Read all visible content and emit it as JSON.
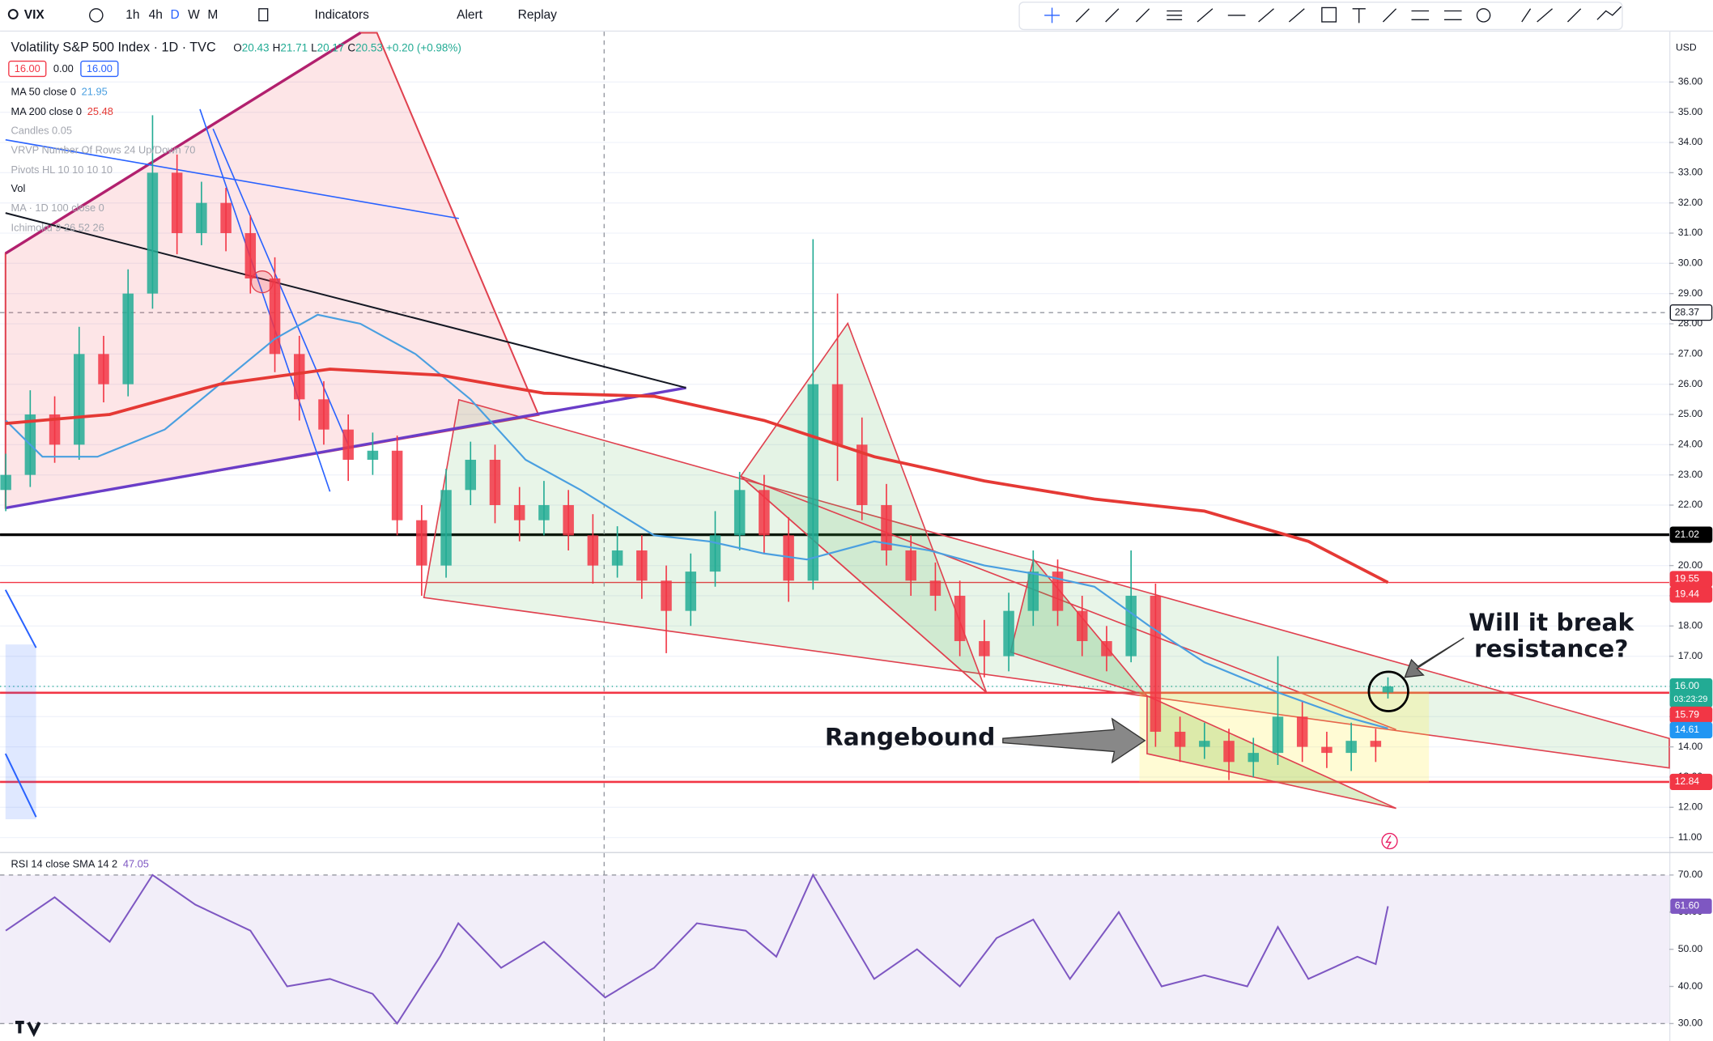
{
  "toolbar": {
    "symbol": "VIX",
    "intervals": [
      "1h",
      "4h",
      "D",
      "W",
      "M"
    ],
    "indicators": "Indicators",
    "alert": "Alert",
    "replay": "Replay",
    "currency": "USD"
  },
  "quote": [
    "16.00",
    "0.00",
    "16.00"
  ],
  "indicators": [
    "Candles 0.05",
    "VRVP Number Of Rows 24 Up/Down 70",
    "Pivots HL 10 10 10 10",
    "Vol",
    "MA · 1D 100 close 0",
    "Ichimoku 9 26 52 26"
  ],
  "annotations": [
    "Will it break",
    "resistance?",
    "Rangebound"
  ],
  "chart_data": [
    {
      "type": "candlestick",
      "title": "Volatility S&P 500 Index · 1D · TVC",
      "ohlc": [
        {
          "label": "O",
          "value": "20.43"
        },
        {
          "label": "H",
          "value": "21.71"
        },
        {
          "label": "L",
          "value": "20.17"
        },
        {
          "label": "C",
          "value": "20.53"
        }
      ],
      "change": "+0.20 (+0.98%)",
      "up_color": "#22ab94",
      "down_color": "#f23645",
      "x": [
        0,
        4,
        8,
        12,
        16,
        20,
        24,
        28,
        32,
        36,
        40,
        44,
        48,
        52,
        56,
        60,
        64,
        68,
        72,
        76,
        80,
        84,
        88,
        92,
        96,
        100,
        104,
        108,
        112,
        116,
        120,
        124,
        128,
        132,
        136,
        140,
        144,
        148,
        152,
        156,
        160,
        164,
        168,
        172,
        176,
        180,
        184,
        188,
        192,
        196,
        200,
        204,
        208,
        212,
        216,
        220,
        224,
        226
      ],
      "open": [
        22.5,
        23,
        25,
        24,
        27,
        26,
        29,
        33,
        31,
        32,
        31,
        29.5,
        27,
        25.5,
        24.5,
        23.5,
        23.8,
        21.5,
        20,
        22.5,
        23.5,
        22,
        21.5,
        22,
        21,
        20,
        20.5,
        19.5,
        18.5,
        19.8,
        21,
        22.5,
        21,
        19.5,
        26,
        24,
        22,
        20.5,
        19.5,
        19,
        17.5,
        17,
        18.5,
        19.8,
        18.5,
        17.5,
        17,
        19,
        14.5,
        14,
        14.2,
        13.5,
        13.8,
        15,
        14,
        13.8,
        14.2,
        15.8
      ],
      "high": [
        23.7,
        25.8,
        25.6,
        27.9,
        27.6,
        29.8,
        34.9,
        33.6,
        32.7,
        32.5,
        31.6,
        30.2,
        27.6,
        26.1,
        25,
        24.4,
        24.3,
        22,
        23.2,
        24.1,
        24,
        22.6,
        22.8,
        22.5,
        21.7,
        21.3,
        21,
        20,
        20.4,
        21.8,
        23.1,
        23,
        21.6,
        30.8,
        29,
        24.9,
        22.7,
        21,
        20.1,
        19.5,
        18.2,
        19.1,
        20.5,
        20.2,
        19,
        18,
        20.5,
        19.4,
        15,
        14.8,
        14.6,
        14.3,
        17,
        15.5,
        14.5,
        14.8,
        14.6,
        16.3
      ],
      "low": [
        21.8,
        22.6,
        23.4,
        23.5,
        25.4,
        25.6,
        28.5,
        30.3,
        30.6,
        30.4,
        29,
        26.4,
        24.8,
        24,
        22.8,
        23,
        21,
        19,
        19.6,
        22,
        21.4,
        20.8,
        21,
        20.5,
        19.4,
        19.6,
        18.9,
        17.1,
        18,
        19.3,
        20.5,
        20.4,
        18.8,
        19.2,
        22.8,
        21.5,
        20,
        19,
        18.5,
        17,
        16.3,
        16.5,
        18,
        18,
        17,
        16.5,
        16.8,
        14,
        13.5,
        13.6,
        12.9,
        13,
        13.4,
        13.5,
        13.3,
        13.2,
        13.5,
        15.6
      ],
      "close": [
        23,
        25,
        24,
        27,
        26,
        29,
        33,
        31,
        32,
        31,
        29.5,
        27,
        25.5,
        24.5,
        23.5,
        23.8,
        21.5,
        20,
        22.5,
        23.5,
        22,
        21.5,
        22,
        21,
        20,
        20.5,
        19.5,
        18.5,
        19.8,
        21,
        22.5,
        21,
        19.5,
        26,
        24,
        22,
        20.5,
        19.5,
        19,
        17.5,
        17,
        18.5,
        19.8,
        18.5,
        17.5,
        17,
        19,
        14.5,
        14,
        14.2,
        13.5,
        13.8,
        15,
        14,
        13.8,
        14.2,
        14,
        16
      ],
      "series": [
        {
          "name": "MA 50 close 0",
          "legend_value": 21.95,
          "color": "#4a9fe0",
          "width": 1.6,
          "x": [
            0,
            6,
            15,
            26,
            35,
            44,
            51,
            58,
            67,
            76,
            85,
            94,
            106,
            115,
            124,
            131,
            142,
            151,
            160,
            169,
            178,
            187,
            196,
            208,
            219,
            226
          ],
          "values": [
            24.8,
            23.6,
            23.6,
            24.5,
            26,
            27.5,
            28.3,
            28,
            27,
            25.5,
            23.5,
            22.5,
            21,
            20.8,
            20.4,
            20.2,
            20.8,
            20.5,
            20,
            19.7,
            19.3,
            18,
            16.8,
            15.8,
            15,
            14.61
          ]
        },
        {
          "name": "MA 200 close 0",
          "legend_value": 25.48,
          "color": "#e53935",
          "width": 2.8,
          "x": [
            0,
            17,
            35,
            53,
            71,
            88,
            106,
            124,
            142,
            160,
            178,
            196,
            213,
            226
          ],
          "values": [
            24.7,
            25,
            26,
            26.5,
            26.3,
            25.7,
            25.6,
            24.8,
            23.6,
            22.8,
            22.2,
            21.8,
            20.8,
            19.44
          ]
        }
      ],
      "xlim": [
        -0.4,
        272
      ],
      "ylim": [
        10.52,
        37.63
      ],
      "yticks": [
        {
          "value": 11,
          "label": "11.00"
        },
        {
          "value": 12,
          "label": "12.00"
        },
        {
          "value": 13,
          "label": "13.00"
        },
        {
          "value": 14,
          "label": "14.00"
        },
        {
          "value": 15,
          "label": "15.00"
        },
        {
          "value": 16,
          "label": "16.00"
        },
        {
          "value": 17,
          "label": "17.00"
        },
        {
          "value": 18,
          "label": "18.00"
        },
        {
          "value": 19,
          "label": "19.00"
        },
        {
          "value": 20,
          "label": "20.00"
        },
        {
          "value": 21,
          "label": "21.00"
        },
        {
          "value": 22,
          "label": "22.00"
        },
        {
          "value": 23,
          "label": "23.00"
        },
        {
          "value": 24,
          "label": "24.00"
        },
        {
          "value": 25,
          "label": "25.00"
        },
        {
          "value": 26,
          "label": "26.00"
        },
        {
          "value": 27,
          "label": "27.00"
        },
        {
          "value": 28,
          "label": "28.00"
        },
        {
          "value": 29,
          "label": "29.00"
        },
        {
          "value": 30,
          "label": "30.00"
        },
        {
          "value": 31,
          "label": "31.00"
        },
        {
          "value": 32,
          "label": "32.00"
        },
        {
          "value": 33,
          "label": "33.00"
        },
        {
          "value": 34,
          "label": "34.00"
        },
        {
          "value": 35,
          "label": "35.00"
        },
        {
          "value": 36,
          "label": "36.00"
        }
      ],
      "grid": true,
      "price_labels": [
        {
          "value": 28.37,
          "label": "28.37",
          "color": "#ffffff",
          "text_color": "#131722",
          "line": "dashed",
          "line_color": "#9598a1",
          "line_width": 1
        },
        {
          "value": 21.02,
          "label": "21.02",
          "color": "#000000",
          "text_color": "#ffffff",
          "line": "solid",
          "line_color": "#000000",
          "line_width": 2.5
        },
        {
          "value": 19.55,
          "label": "19.55",
          "color": "#f23645",
          "text_color": "#ffffff"
        },
        {
          "value": 19.44,
          "label": "19.44",
          "color": "#f23645",
          "text_color": "#ffffff",
          "line": "solid",
          "line_color": "#f23645",
          "line_width": 1
        },
        {
          "value": 16,
          "label": "16.00",
          "countdown": "03:23:29",
          "color": "#22ab94",
          "text_color": "#ffffff",
          "line": "dotted",
          "line_color": "#22ab94",
          "line_width": 1
        },
        {
          "value": 15.79,
          "label": "15.79",
          "color": "#f23645",
          "text_color": "#ffffff",
          "line": "solid",
          "line_color": "#f23645",
          "line_width": 2
        },
        {
          "value": 14.61,
          "label": "14.61",
          "color": "#2196f3",
          "text_color": "#ffffff"
        },
        {
          "value": 12.84,
          "label": "12.84",
          "color": "#f23645",
          "text_color": "#ffffff",
          "line": "solid",
          "line_color": "#f23645",
          "line_width": 2
        }
      ]
    },
    {
      "type": "line",
      "title": "RSI 14 close SMA 14 2",
      "legend_value": 47.05,
      "color": "#7e57c2",
      "x": [
        0,
        8,
        17,
        24,
        31,
        40,
        46,
        53,
        60,
        64,
        71,
        74,
        81,
        88,
        98,
        106,
        113,
        121,
        126,
        132,
        142,
        149,
        156,
        162,
        168,
        174,
        182,
        189,
        196,
        203,
        208,
        213,
        221,
        224,
        226
      ],
      "values": [
        55,
        64,
        52,
        70,
        62,
        55,
        40,
        42,
        38,
        30,
        48,
        57,
        45,
        52,
        37,
        45,
        57,
        55,
        48,
        70,
        42,
        50,
        40,
        53,
        58,
        42,
        60,
        40,
        43,
        40,
        56,
        42,
        48,
        46,
        61.6
      ],
      "xlim": [
        -0.4,
        272
      ],
      "ylim": [
        25.3,
        75.6
      ],
      "yticks": [
        {
          "value": 30,
          "label": "30.00"
        },
        {
          "value": 40,
          "label": "40.00"
        },
        {
          "value": 50,
          "label": "50.00"
        },
        {
          "value": 60,
          "label": "60.00"
        },
        {
          "value": 70,
          "label": "70.00"
        }
      ],
      "band": [
        30,
        70
      ],
      "band_color": "#7e57c2",
      "last_label": {
        "value": 61.6,
        "label": "61.60"
      }
    }
  ]
}
